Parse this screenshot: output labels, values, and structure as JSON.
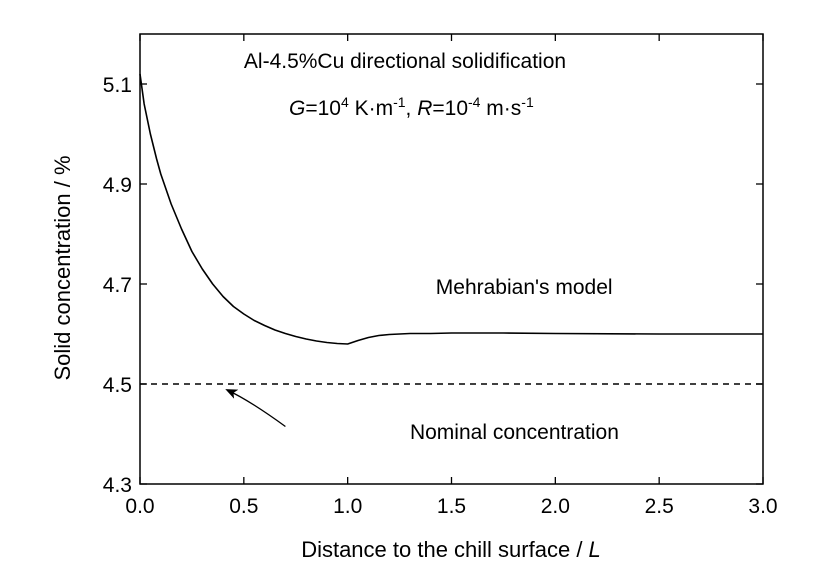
{
  "chart_data": {
    "type": "line",
    "title_lines": [
      "Al-4.5%Cu directional solidification",
      "G=10^4 K·m^-1, R=10^-4 m·s^-1"
    ],
    "title": {
      "line1": "Al-4.5%Cu directional solidification",
      "line2": {
        "g_symbol": "G",
        "g_eq": "=10",
        "g_exp": "4",
        "g_unit": " K·m",
        "g_unit_exp": "-1",
        "sep": ", ",
        "r_symbol": "R",
        "r_eq": "=10",
        "r_exp": "-4",
        "r_unit": " m·s",
        "r_unit_exp": "-1"
      }
    },
    "xlabel": {
      "text": "Distance to the chill surface / ",
      "symbol": "L"
    },
    "ylabel": "Solid concentration / %",
    "xlim": [
      0.0,
      3.0
    ],
    "ylim": [
      4.3,
      5.2
    ],
    "x_ticks": [
      0.0,
      0.5,
      1.0,
      1.5,
      2.0,
      2.5,
      3.0
    ],
    "x_tick_labels": [
      "0.0",
      "0.5",
      "1.0",
      "1.5",
      "2.0",
      "2.5",
      "3.0"
    ],
    "y_ticks": [
      4.3,
      4.5,
      4.7,
      4.9,
      5.1
    ],
    "y_tick_labels": [
      "4.3",
      "4.5",
      "4.7",
      "4.9",
      "5.1"
    ],
    "grid": false,
    "series": [
      {
        "name": "Mehrabian's model",
        "style": "solid",
        "color": "#000000",
        "x": [
          0.0,
          0.02,
          0.05,
          0.08,
          0.1,
          0.15,
          0.2,
          0.25,
          0.3,
          0.35,
          0.4,
          0.45,
          0.5,
          0.55,
          0.6,
          0.65,
          0.7,
          0.75,
          0.8,
          0.85,
          0.9,
          0.95,
          1.0,
          1.05,
          1.1,
          1.15,
          1.2,
          1.25,
          1.3,
          1.4,
          1.5,
          1.75,
          2.0,
          2.5,
          3.0
        ],
        "y": [
          5.12,
          5.06,
          5.0,
          4.95,
          4.92,
          4.86,
          4.81,
          4.765,
          4.73,
          4.7,
          4.675,
          4.655,
          4.64,
          4.627,
          4.617,
          4.608,
          4.601,
          4.595,
          4.59,
          4.586,
          4.583,
          4.581,
          4.58,
          4.587,
          4.593,
          4.597,
          4.599,
          4.6,
          4.601,
          4.601,
          4.602,
          4.602,
          4.601,
          4.6,
          4.6
        ]
      },
      {
        "name": "Nominal concentration",
        "style": "dashed",
        "color": "#000000",
        "x": [
          0.0,
          3.0
        ],
        "y": [
          4.5,
          4.5
        ]
      }
    ],
    "annotations": [
      {
        "text": "Mehrabian's model",
        "x": 1.85,
        "y": 4.68,
        "anchor": "middle"
      },
      {
        "text": "Nominal concentration",
        "x": 1.3,
        "y": 4.39,
        "anchor": "start",
        "arrow_from": [
          0.7,
          4.415
        ],
        "arrow_to": [
          0.4,
          4.5
        ]
      }
    ]
  }
}
